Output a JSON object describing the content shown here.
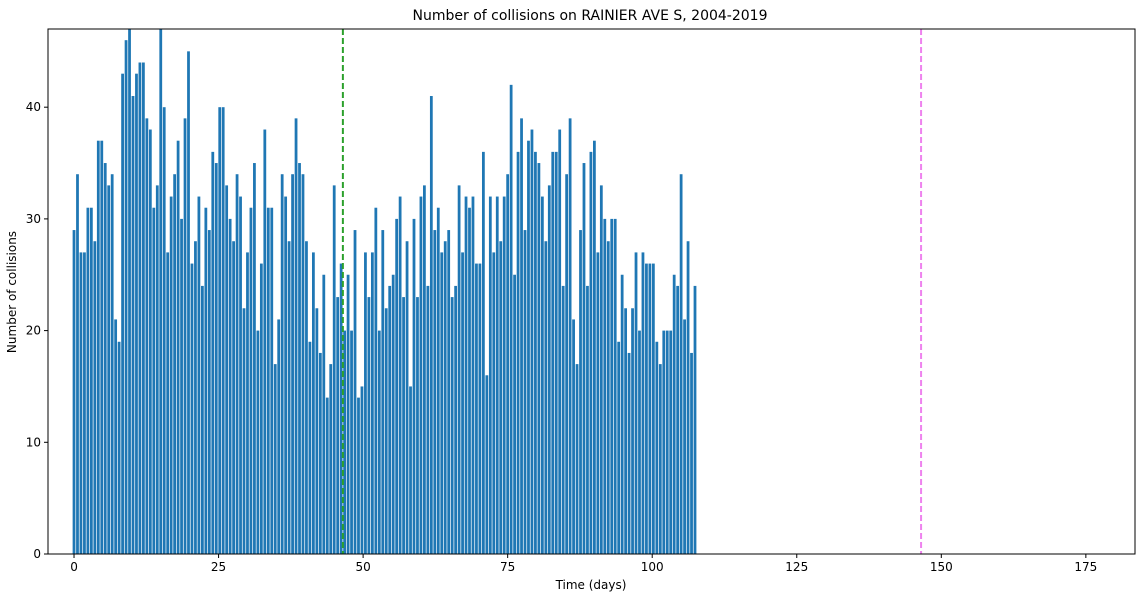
{
  "chart_data": {
    "type": "bar",
    "title": "Number of collisions on RAINIER AVE S, 2004-2019",
    "xlabel": "Time (days)",
    "ylabel": "Number of collisions",
    "xlim": [
      -4.5,
      183.5
    ],
    "ylim": [
      0,
      47
    ],
    "xticks": [
      0,
      25,
      50,
      75,
      100,
      125,
      150,
      175
    ],
    "yticks": [
      0,
      10,
      20,
      30,
      40
    ],
    "grid": false,
    "bar_color": "#1f77b4",
    "x_start": 0,
    "x_step": 0.6,
    "values": [
      29,
      34,
      27,
      27,
      31,
      31,
      28,
      37,
      37,
      35,
      33,
      34,
      21,
      19,
      43,
      46,
      47,
      41,
      43,
      44,
      44,
      39,
      38,
      31,
      33,
      47,
      40,
      27,
      32,
      34,
      37,
      30,
      39,
      45,
      26,
      28,
      32,
      24,
      31,
      29,
      36,
      35,
      40,
      40,
      33,
      30,
      28,
      34,
      32,
      22,
      27,
      31,
      35,
      20,
      26,
      38,
      31,
      31,
      17,
      21,
      34,
      32,
      28,
      34,
      39,
      35,
      34,
      28,
      19,
      27,
      22,
      18,
      25,
      14,
      17,
      33,
      23,
      26,
      20,
      25,
      20,
      29,
      14,
      15,
      27,
      23,
      27,
      31,
      20,
      29,
      22,
      24,
      25,
      30,
      32,
      23,
      28,
      15,
      30,
      23,
      32,
      33,
      24,
      41,
      29,
      31,
      27,
      28,
      29,
      23,
      24,
      33,
      27,
      32,
      31,
      32,
      26,
      26,
      36,
      16,
      32,
      27,
      32,
      28,
      32,
      34,
      42,
      25,
      36,
      39,
      29,
      37,
      38,
      36,
      35,
      32,
      28,
      33,
      36,
      36,
      38,
      24,
      34,
      39,
      21,
      17,
      29,
      35,
      24,
      36,
      37,
      27,
      33,
      30,
      28,
      30,
      30,
      19,
      25,
      22,
      18,
      22,
      27,
      20,
      27,
      26,
      26,
      26,
      19,
      17,
      20,
      20,
      20,
      25,
      24,
      34,
      21,
      28,
      18,
      24
    ],
    "vlines": [
      {
        "x": 46.5,
        "color": "#2ca02c",
        "style": "dashed"
      },
      {
        "x": 146.5,
        "color": "#ee82ee",
        "style": "dashed"
      }
    ]
  }
}
